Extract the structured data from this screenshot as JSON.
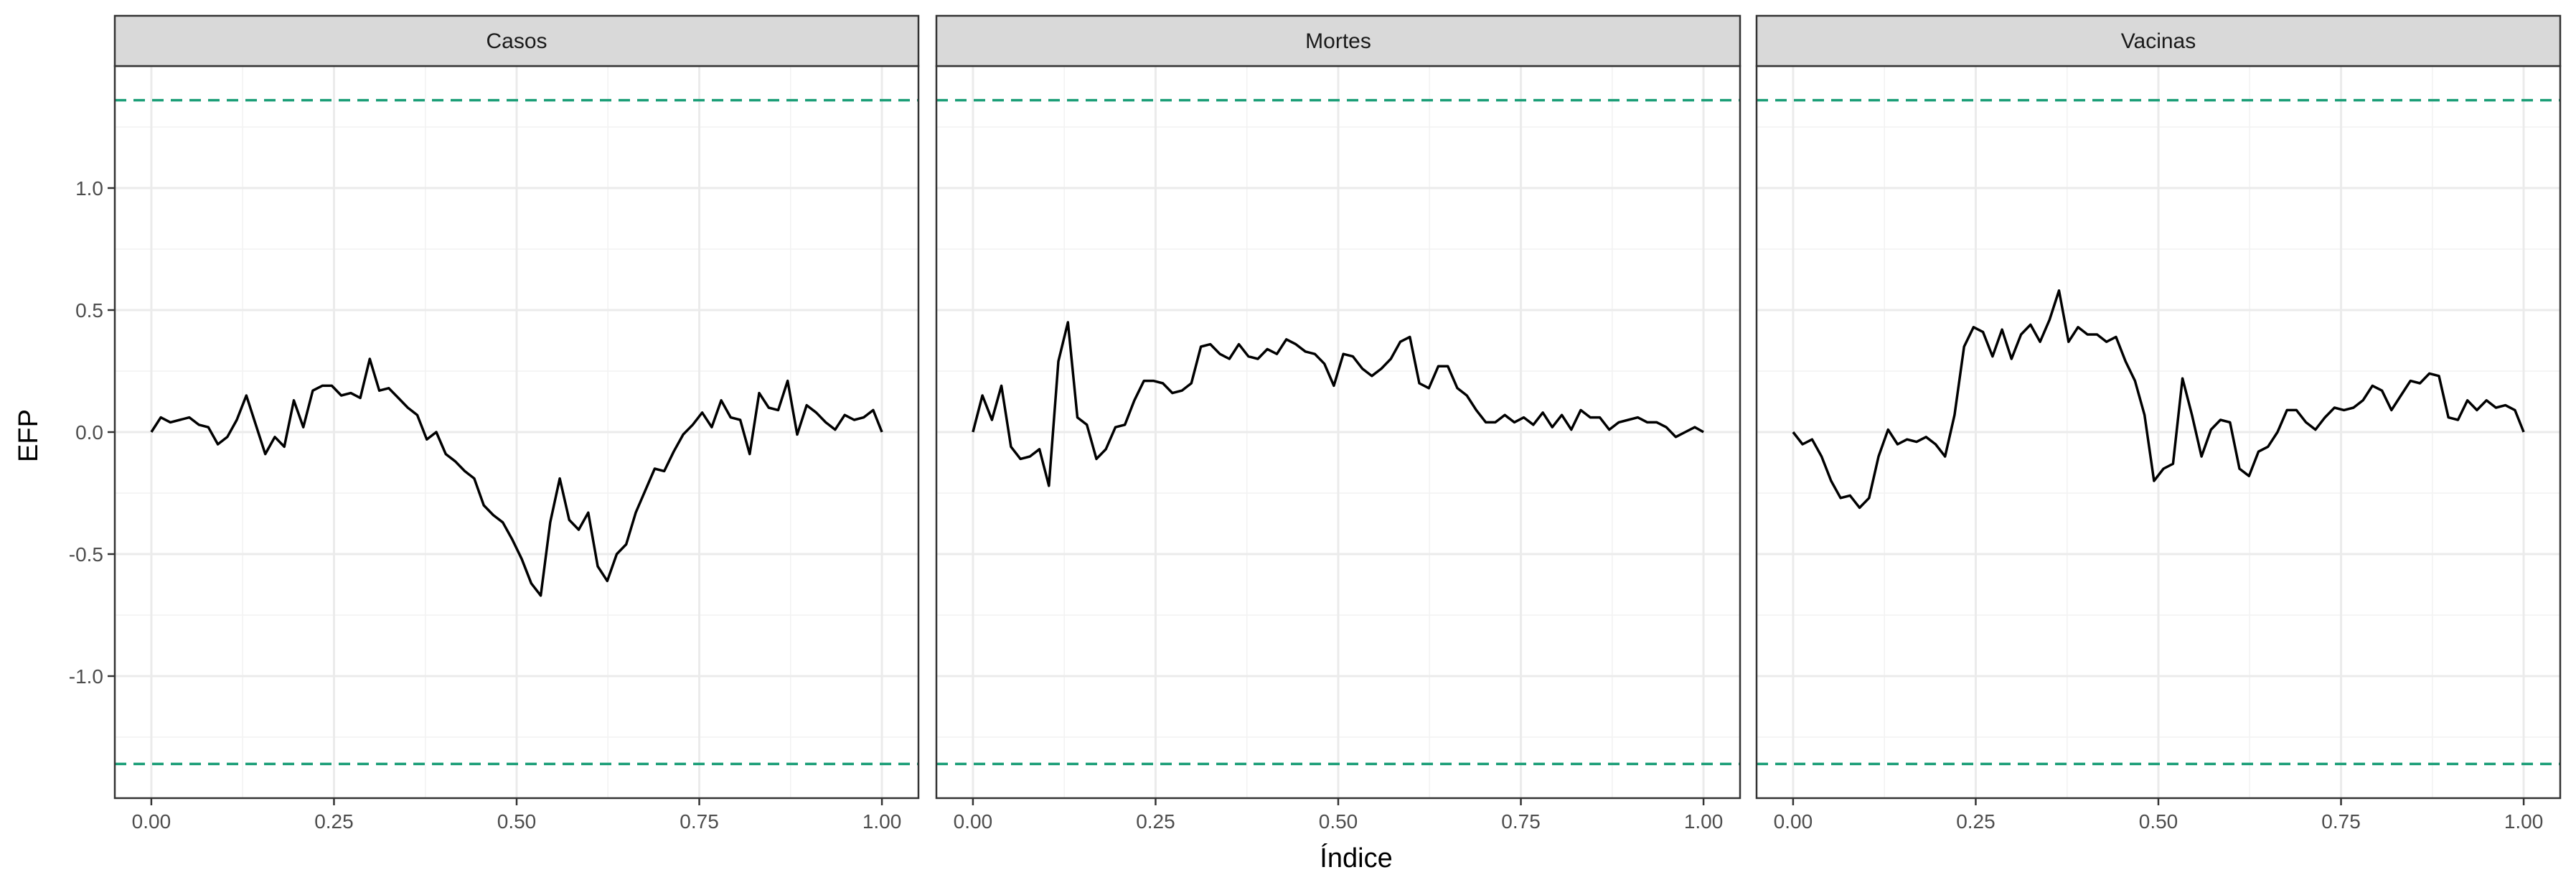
{
  "chart_data": {
    "type": "line",
    "xlabel": "Índice",
    "ylabel": "EFP",
    "xlim": [
      -0.05,
      1.05
    ],
    "ylim": [
      -1.5,
      1.5
    ],
    "x_ticks": [
      0,
      0.25,
      0.5,
      0.75,
      1
    ],
    "x_tick_labels": [
      "0.00",
      "0.25",
      "0.50",
      "0.75",
      "1.00"
    ],
    "y_ticks": [
      -1,
      -0.5,
      0,
      0.5,
      1
    ],
    "y_tick_labels": [
      "-1.0",
      "-0.5",
      "0.0",
      "0.5",
      "1.0"
    ],
    "boundary": {
      "upper": 1.36,
      "lower": -1.36,
      "color": "#1b9e77",
      "style": "dashed"
    },
    "grid": true,
    "line_color": "#000000",
    "panel_border_color": "#333333",
    "strip_fill": "#d9d9d9",
    "panels": [
      {
        "title": "Casos",
        "x": [
          0.0,
          0.013,
          0.026,
          0.039,
          0.052,
          0.065,
          0.078,
          0.091,
          0.104,
          0.117,
          0.13,
          0.143,
          0.156,
          0.169,
          0.182,
          0.195,
          0.208,
          0.221,
          0.234,
          0.247,
          0.26,
          0.273,
          0.286,
          0.299,
          0.312,
          0.325,
          0.338,
          0.351,
          0.364,
          0.377,
          0.39,
          0.403,
          0.416,
          0.429,
          0.442,
          0.455,
          0.468,
          0.481,
          0.494,
          0.507,
          0.52,
          0.533,
          0.546,
          0.559,
          0.572,
          0.585,
          0.598,
          0.611,
          0.624,
          0.637,
          0.65,
          0.663,
          0.676,
          0.689,
          0.702,
          0.715,
          0.728,
          0.741,
          0.754,
          0.767,
          0.78,
          0.793,
          0.806,
          0.819,
          0.832,
          0.845,
          0.858,
          0.871,
          0.884,
          0.897,
          0.91,
          0.923,
          0.936,
          0.949,
          0.962,
          0.975,
          0.988,
          1.0
        ],
        "y": [
          0.0,
          0.06,
          0.04,
          0.05,
          0.06,
          0.03,
          0.02,
          -0.05,
          -0.02,
          0.05,
          0.15,
          0.03,
          -0.09,
          -0.02,
          -0.06,
          0.13,
          0.02,
          0.17,
          0.19,
          0.19,
          0.15,
          0.16,
          0.14,
          0.3,
          0.17,
          0.18,
          0.14,
          0.1,
          0.07,
          -0.03,
          0.0,
          -0.09,
          -0.12,
          -0.16,
          -0.19,
          -0.3,
          -0.34,
          -0.37,
          -0.44,
          -0.52,
          -0.62,
          -0.67,
          -0.37,
          -0.19,
          -0.36,
          -0.4,
          -0.33,
          -0.55,
          -0.61,
          -0.5,
          -0.46,
          -0.33,
          -0.24,
          -0.15,
          -0.16,
          -0.08,
          -0.01,
          0.03,
          0.08,
          0.02,
          0.13,
          0.06,
          0.05,
          -0.09,
          0.16,
          0.1,
          0.09,
          0.21,
          -0.01,
          0.11,
          0.08,
          0.04,
          0.01,
          0.07,
          0.05,
          0.06,
          0.09,
          0.0
        ]
      },
      {
        "title": "Mortes",
        "x": [
          0.0,
          0.013,
          0.026,
          0.039,
          0.052,
          0.065,
          0.078,
          0.091,
          0.104,
          0.117,
          0.13,
          0.143,
          0.156,
          0.169,
          0.182,
          0.195,
          0.208,
          0.221,
          0.234,
          0.247,
          0.26,
          0.273,
          0.286,
          0.299,
          0.312,
          0.325,
          0.338,
          0.351,
          0.364,
          0.377,
          0.39,
          0.403,
          0.416,
          0.429,
          0.442,
          0.455,
          0.468,
          0.481,
          0.494,
          0.507,
          0.52,
          0.533,
          0.546,
          0.559,
          0.572,
          0.585,
          0.598,
          0.611,
          0.624,
          0.637,
          0.65,
          0.663,
          0.676,
          0.689,
          0.702,
          0.715,
          0.728,
          0.741,
          0.754,
          0.767,
          0.78,
          0.793,
          0.806,
          0.819,
          0.832,
          0.845,
          0.858,
          0.871,
          0.884,
          0.897,
          0.91,
          0.923,
          0.936,
          0.949,
          0.962,
          0.975,
          0.988,
          1.0
        ],
        "y": [
          0.0,
          0.15,
          0.05,
          0.19,
          -0.06,
          -0.11,
          -0.1,
          -0.07,
          -0.22,
          0.29,
          0.45,
          0.06,
          0.03,
          -0.11,
          -0.07,
          0.02,
          0.03,
          0.13,
          0.21,
          0.21,
          0.2,
          0.16,
          0.17,
          0.2,
          0.35,
          0.36,
          0.32,
          0.3,
          0.36,
          0.31,
          0.3,
          0.34,
          0.32,
          0.38,
          0.36,
          0.33,
          0.32,
          0.28,
          0.19,
          0.32,
          0.31,
          0.26,
          0.23,
          0.26,
          0.3,
          0.37,
          0.39,
          0.2,
          0.18,
          0.27,
          0.27,
          0.18,
          0.15,
          0.09,
          0.04,
          0.04,
          0.07,
          0.04,
          0.06,
          0.03,
          0.08,
          0.02,
          0.07,
          0.01,
          0.09,
          0.06,
          0.06,
          0.01,
          0.04,
          0.05,
          0.06,
          0.04,
          0.04,
          0.02,
          -0.02,
          0.0,
          0.02,
          0.0
        ]
      },
      {
        "title": "Vacinas",
        "x": [
          0.0,
          0.013,
          0.026,
          0.039,
          0.052,
          0.065,
          0.078,
          0.091,
          0.104,
          0.117,
          0.13,
          0.143,
          0.156,
          0.169,
          0.182,
          0.195,
          0.208,
          0.221,
          0.234,
          0.247,
          0.26,
          0.273,
          0.286,
          0.299,
          0.312,
          0.325,
          0.338,
          0.351,
          0.364,
          0.377,
          0.39,
          0.403,
          0.416,
          0.429,
          0.442,
          0.455,
          0.468,
          0.481,
          0.494,
          0.507,
          0.52,
          0.533,
          0.546,
          0.559,
          0.572,
          0.585,
          0.598,
          0.611,
          0.624,
          0.637,
          0.65,
          0.663,
          0.676,
          0.689,
          0.702,
          0.715,
          0.728,
          0.741,
          0.754,
          0.767,
          0.78,
          0.793,
          0.806,
          0.819,
          0.832,
          0.845,
          0.858,
          0.871,
          0.884,
          0.897,
          0.91,
          0.923,
          0.936,
          0.949,
          0.962,
          0.975,
          0.988,
          1.0
        ],
        "y": [
          0.0,
          -0.05,
          -0.03,
          -0.1,
          -0.2,
          -0.27,
          -0.26,
          -0.31,
          -0.27,
          -0.1,
          0.01,
          -0.05,
          -0.03,
          -0.04,
          -0.02,
          -0.05,
          -0.1,
          0.07,
          0.35,
          0.43,
          0.41,
          0.31,
          0.42,
          0.3,
          0.4,
          0.44,
          0.37,
          0.46,
          0.58,
          0.37,
          0.43,
          0.4,
          0.4,
          0.37,
          0.39,
          0.29,
          0.21,
          0.07,
          -0.2,
          -0.15,
          -0.13,
          0.22,
          0.07,
          -0.1,
          0.01,
          0.05,
          0.04,
          -0.15,
          -0.18,
          -0.08,
          -0.06,
          0.0,
          0.09,
          0.09,
          0.04,
          0.01,
          0.06,
          0.1,
          0.09,
          0.1,
          0.13,
          0.19,
          0.17,
          0.09,
          0.15,
          0.21,
          0.2,
          0.24,
          0.23,
          0.06,
          0.05,
          0.13,
          0.09,
          0.13,
          0.1,
          0.11,
          0.09,
          0.0
        ]
      }
    ]
  }
}
